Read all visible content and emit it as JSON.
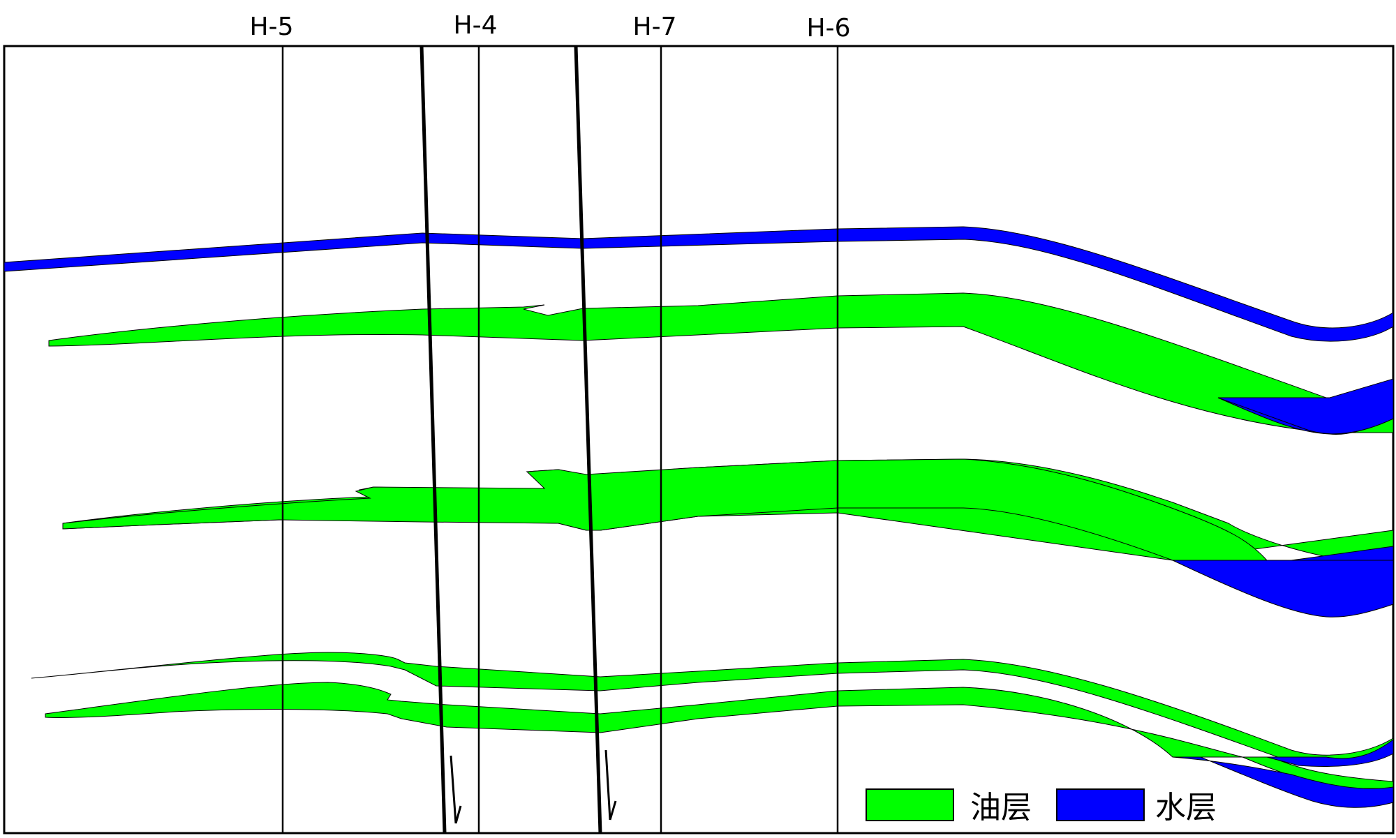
{
  "wells": [
    {
      "label": "H-5"
    },
    {
      "label": "H-4"
    },
    {
      "label": "H-7"
    },
    {
      "label": "H-6"
    }
  ],
  "legend": {
    "oil_label": "油层",
    "water_label": "水层"
  },
  "colors": {
    "oil": "#00ff00",
    "water": "#0000ff",
    "line": "#000000",
    "background": "#ffffff"
  }
}
